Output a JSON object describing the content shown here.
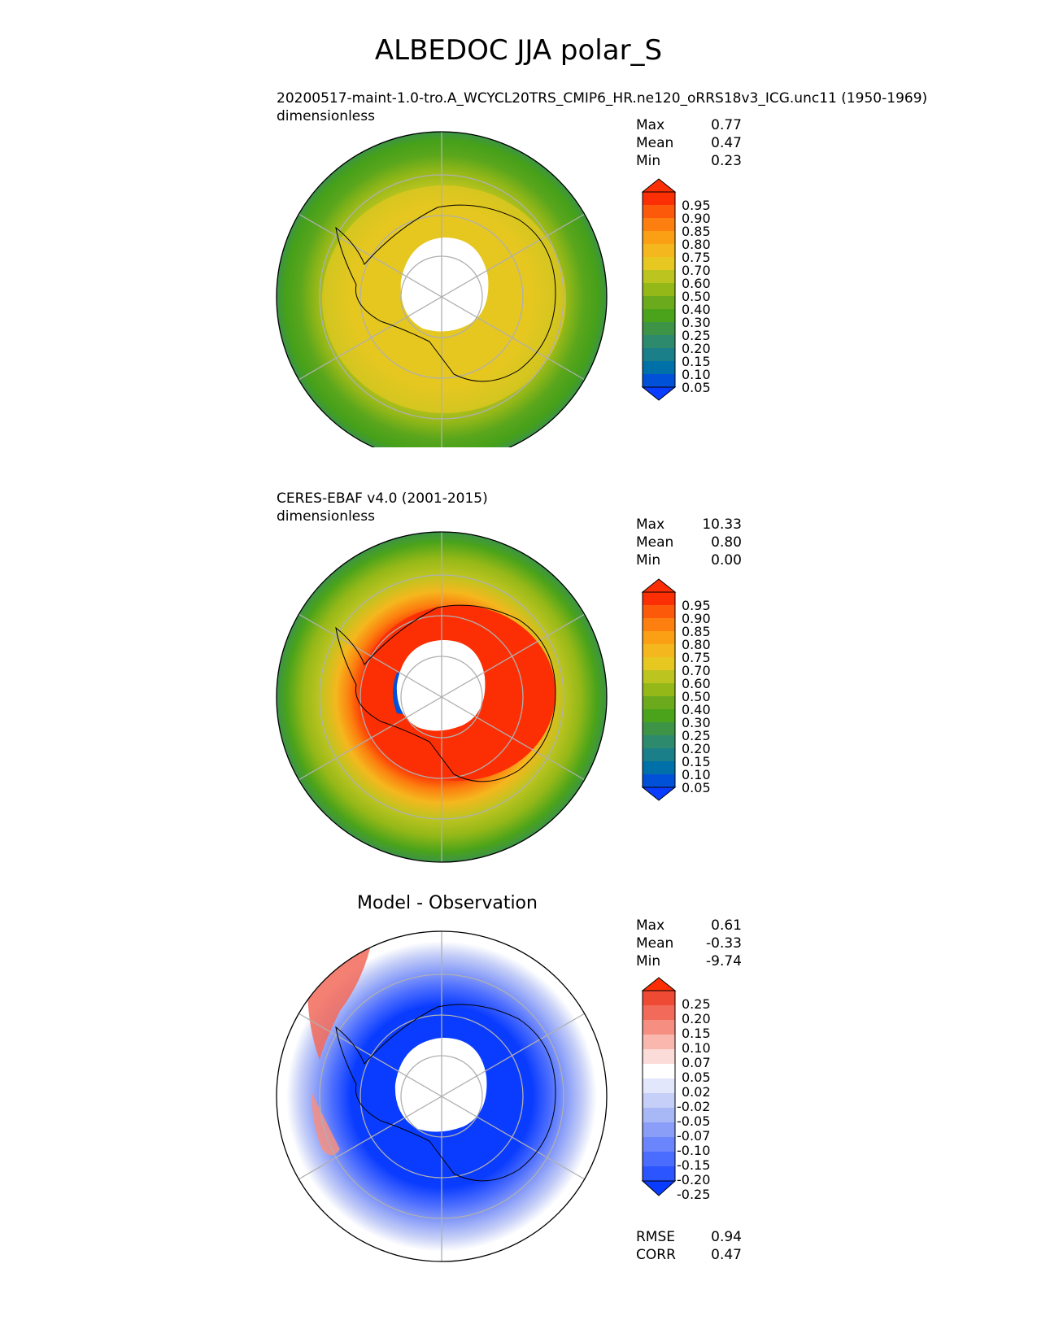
{
  "page_title": "ALBEDOC JJA polar_S",
  "panels": [
    {
      "id": "test",
      "title_line1": "20200517-maint-1.0-tro.A_WCYCL20TRS_CMIP6_HR.ne120_oRRS18v3_ICG.unc11 (1950-1969)",
      "title_line2": "dimensionless",
      "stats": [
        {
          "label": "Max",
          "value": "0.77"
        },
        {
          "label": "Mean",
          "value": "0.47"
        },
        {
          "label": "Min",
          "value": "0.23"
        }
      ]
    },
    {
      "id": "reference",
      "title_line1": "CERES-EBAF v4.0 (2001-2015)",
      "title_line2": "dimensionless",
      "stats": [
        {
          "label": "Max",
          "value": "10.33"
        },
        {
          "label": "Mean",
          "value": "0.80"
        },
        {
          "label": "Min",
          "value": "0.00"
        }
      ]
    },
    {
      "id": "difference",
      "title": "Model - Observation",
      "stats": [
        {
          "label": "Max",
          "value": "0.61"
        },
        {
          "label": "Mean",
          "value": "-0.33"
        },
        {
          "label": "Min",
          "value": "-9.74"
        }
      ],
      "metrics": [
        {
          "label": "RMSE",
          "value": "0.94"
        },
        {
          "label": "CORR",
          "value": "0.47"
        }
      ]
    }
  ],
  "chart_data": [
    {
      "type": "heatmap",
      "projection": "south-polar-stereographic",
      "panel": "test",
      "colorbar": {
        "extend": "both",
        "ticks": [
          "0.05",
          "0.10",
          "0.15",
          "0.20",
          "0.25",
          "0.30",
          "0.40",
          "0.50",
          "0.60",
          "0.70",
          "0.75",
          "0.80",
          "0.85",
          "0.90",
          "0.95"
        ],
        "colors": [
          "#0a3cff",
          "#0050d8",
          "#0070a8",
          "#1a7f88",
          "#2e8a6c",
          "#3d9446",
          "#4aa31a",
          "#6aaa1c",
          "#94b818",
          "#bcc420",
          "#e6c821",
          "#f5b71e",
          "#fb9f14",
          "#fc7f0f",
          "#fc5a0a",
          "#fc2f04"
        ]
      },
      "regions": [
        {
          "ring": "outer ocean",
          "approx_value": 0.3
        },
        {
          "ring": "mid ocean",
          "approx_value": 0.5
        },
        {
          "ring": "sea ice / continent",
          "approx_value": 0.65
        },
        {
          "ring": "polar night",
          "approx_value": null
        }
      ],
      "grid": true
    },
    {
      "type": "heatmap",
      "projection": "south-polar-stereographic",
      "panel": "reference",
      "colorbar": {
        "extend": "both",
        "ticks": [
          "0.05",
          "0.10",
          "0.15",
          "0.20",
          "0.25",
          "0.30",
          "0.40",
          "0.50",
          "0.60",
          "0.70",
          "0.75",
          "0.80",
          "0.85",
          "0.90",
          "0.95"
        ]
      },
      "regions": [
        {
          "ring": "outer ocean",
          "approx_value": 0.3
        },
        {
          "ring": "mid ocean",
          "approx_value": 0.55
        },
        {
          "ring": "sea ice edge",
          "approx_value": 0.8
        },
        {
          "ring": "continent",
          "approx_value": 0.95
        },
        {
          "ring": "polar night",
          "approx_value": null
        }
      ],
      "grid": true
    },
    {
      "type": "heatmap",
      "projection": "south-polar-stereographic",
      "panel": "difference",
      "colorbar": {
        "extend": "both",
        "ticks": [
          "-0.25",
          "-0.20",
          "-0.15",
          "-0.10",
          "-0.07",
          "-0.05",
          "-0.02",
          "0.02",
          "0.05",
          "0.07",
          "0.10",
          "0.15",
          "0.20",
          "0.25"
        ],
        "colors": [
          "#0a3cff",
          "#2a55ff",
          "#4a6cff",
          "#6b85fc",
          "#8a9ef8",
          "#a8b7f6",
          "#c6cff7",
          "#e2e7fb",
          "#ffffff",
          "#fcdcd8",
          "#f9b7ae",
          "#f68f82",
          "#f26a5a",
          "#ee4a34",
          "#fc2f04"
        ]
      },
      "regions": [
        {
          "ring": "continent",
          "approx_value": -0.3
        },
        {
          "ring": "sea ice zone",
          "approx_value": -0.12
        },
        {
          "ring": "open ocean",
          "approx_value": 0.0
        },
        {
          "ring": "Weddell / Bellingshausen",
          "approx_value": 0.12
        }
      ],
      "grid": true
    }
  ]
}
